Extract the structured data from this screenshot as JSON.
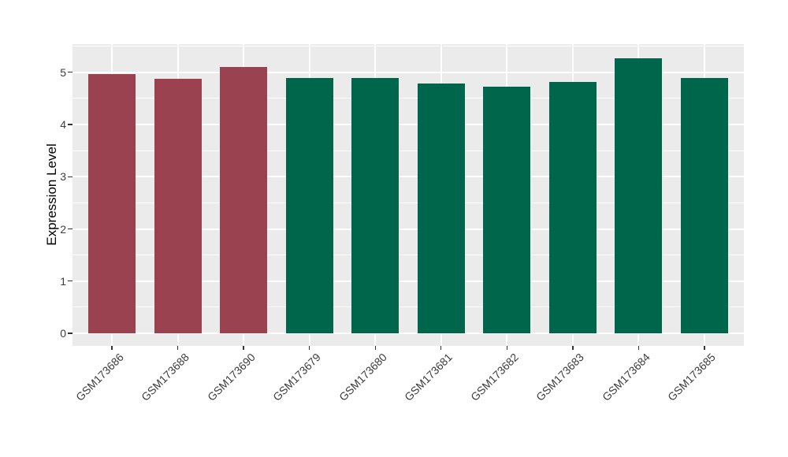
{
  "figure": {
    "background": "#FFFFFF",
    "panel_background": "#EBEBEB",
    "grid_color": "#FFFFFF",
    "tick_mark_color": "#333333",
    "axis_text_color": "#3C3C3C",
    "axis_title_color": "#000000"
  },
  "chart_data": {
    "type": "bar",
    "title": "",
    "xlabel": "",
    "ylabel": "Expression Level",
    "categories": [
      "GSM173686",
      "GSM173688",
      "GSM173690",
      "GSM173679",
      "GSM173680",
      "GSM173681",
      "GSM173682",
      "GSM173683",
      "GSM173684",
      "GSM173685"
    ],
    "values": [
      4.97,
      4.88,
      5.1,
      4.89,
      4.89,
      4.79,
      4.73,
      4.81,
      5.27,
      4.89
    ],
    "groups": [
      "group1",
      "group1",
      "group1",
      "group2",
      "group2",
      "group2",
      "group2",
      "group2",
      "group2",
      "group2"
    ],
    "group_colors": {
      "group1": "#9B4251",
      "group2": "#00664B"
    },
    "yticks": [
      0,
      1,
      2,
      3,
      4,
      5
    ],
    "yticks_minor": [
      0.5,
      1.5,
      2.5,
      3.5,
      4.5,
      5.5
    ],
    "ylim": [
      -0.26,
      5.53
    ],
    "bar_width_ratio": 0.72,
    "x_tick_angle": 45,
    "grid": "horizontal major+minor, vertical major at category centers",
    "legend": "none"
  }
}
